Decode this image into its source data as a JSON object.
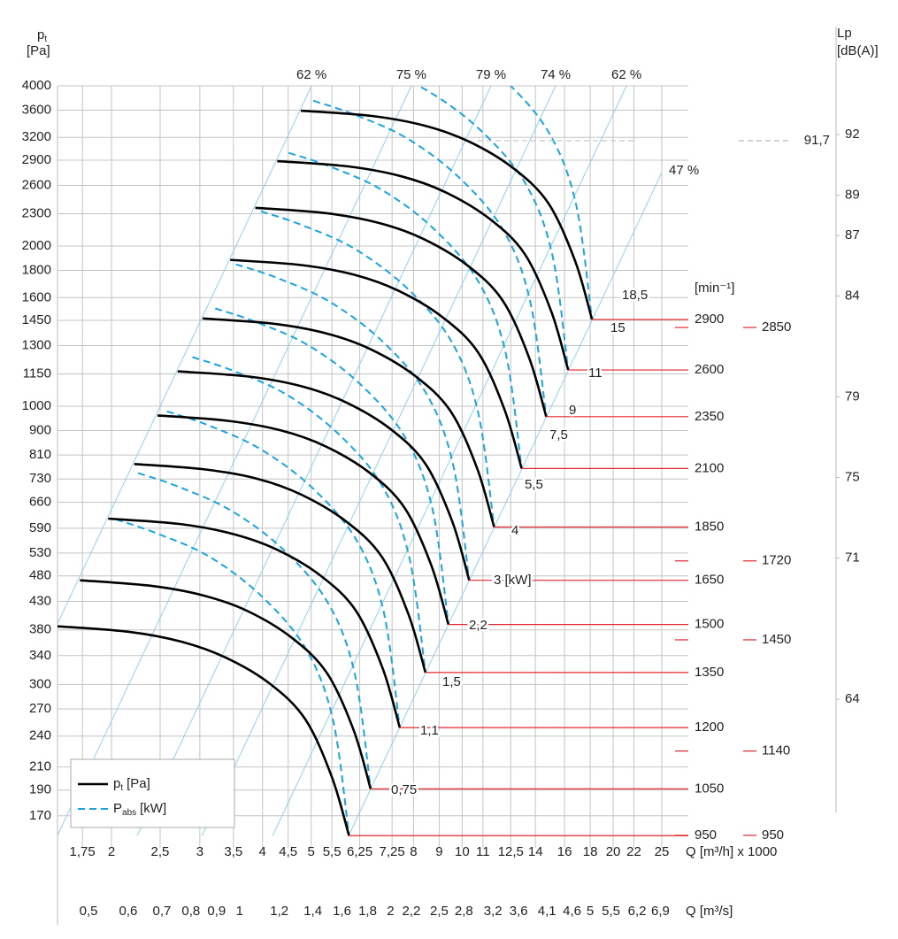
{
  "chart_data": {
    "type": "line",
    "y_label": {
      "symbol": "p",
      "sub": "t",
      "unit": "[Pa]"
    },
    "y2_label": "Lp",
    "y2_unit": "[dB(A)]",
    "x_label": "Q [m³/h] x 1000",
    "x2_label": "Q [m³/s]",
    "rpm_unit": "[min⁻¹]",
    "xlog": true,
    "ylog": true,
    "x2log": true,
    "y2log": false,
    "grid": true,
    "xlim": [
      1.561,
      28.24
    ],
    "x2lim": [
      0.4336,
      7.844
    ],
    "ylim": [
      148,
      4000
    ],
    "y2lim": [
      56.63,
      94.42
    ],
    "xticks": [
      {
        "value": 1.75,
        "label": "1,75"
      },
      2,
      {
        "value": 2.5,
        "label": "2,5"
      },
      3,
      {
        "value": 3.5,
        "label": "3,5"
      },
      4,
      {
        "value": 4.5,
        "label": "4,5"
      },
      5,
      {
        "value": 5.5,
        "label": "5,5"
      },
      {
        "value": 6.25,
        "label": "6,25"
      },
      {
        "value": 7.25,
        "label": "7,25"
      },
      8,
      9,
      10,
      11,
      {
        "value": 12.5,
        "label": "12,5"
      },
      14,
      16,
      18,
      20,
      22,
      25
    ],
    "x2ticks": [
      {
        "value": 0.5,
        "label": "0,5"
      },
      {
        "value": 0.6,
        "label": "0,6"
      },
      {
        "value": 0.7,
        "label": "0,7"
      },
      {
        "value": 0.8,
        "label": "0,8"
      },
      {
        "value": 0.9,
        "label": "0,9"
      },
      1,
      {
        "value": 1.2,
        "label": "1,2"
      },
      {
        "value": 1.4,
        "label": "1,4"
      },
      {
        "value": 1.6,
        "label": "1,6"
      },
      {
        "value": 1.8,
        "label": "1,8"
      },
      2,
      {
        "value": 2.2,
        "label": "2,2"
      },
      {
        "value": 2.5,
        "label": "2,5"
      },
      {
        "value": 2.8,
        "label": "2,8"
      },
      {
        "value": 3.2,
        "label": "3,2"
      },
      {
        "value": 3.6,
        "label": "3,6"
      },
      {
        "value": 4.1,
        "label": "4,1"
      },
      {
        "value": 4.6,
        "label": "4,6"
      },
      5,
      {
        "value": 5.5,
        "label": "5,5"
      },
      {
        "value": 6.2,
        "label": "6,2"
      },
      {
        "value": 6.9,
        "label": "6,9"
      }
    ],
    "yticks": [
      170,
      190,
      210,
      240,
      270,
      300,
      340,
      380,
      430,
      480,
      530,
      590,
      660,
      730,
      810,
      900,
      1000,
      1150,
      1300,
      1450,
      1600,
      1800,
      2000,
      2300,
      2600,
      2900,
      3200,
      3600,
      4000
    ],
    "y2ticks": [
      92,
      89,
      87,
      84,
      79,
      75,
      71,
      64
    ],
    "pressure_color": "#000000",
    "power_color": "#1ca4de",
    "efficiency_color": "#86cdf0",
    "rpm_color": "#e3262d",
    "pressure_curves": [
      {
        "rpm": 2900,
        "x": [
          4.77,
          6.6,
          8.42,
          10.32,
          12.64,
          14.87,
          16.8,
          18.15
        ],
        "values": [
          3593,
          3512,
          3367,
          3143,
          2802,
          2404,
          1874,
          1456
        ]
      },
      {
        "rpm": 2600,
        "x": [
          4.28,
          5.92,
          7.55,
          9.25,
          11.33,
          13.33,
          15.06,
          16.27
        ],
        "values": [
          2888,
          2823,
          2706,
          2526,
          2252,
          1932,
          1506,
          1170
        ]
      },
      {
        "rpm": 2350,
        "x": [
          3.87,
          5.35,
          6.82,
          8.36,
          10.24,
          12.05,
          13.61,
          14.71
        ],
        "values": [
          2360,
          2306,
          2211,
          2064,
          1840,
          1579,
          1231,
          956
        ]
      },
      {
        "rpm": 2100,
        "x": [
          3.45,
          4.78,
          6.1,
          7.47,
          9.15,
          10.77,
          12.16,
          13.14
        ],
        "values": [
          1884,
          1842,
          1766,
          1648,
          1469,
          1261,
          983,
          764
        ]
      },
      {
        "rpm": 1850,
        "x": [
          3.04,
          4.21,
          5.37,
          6.58,
          8.06,
          9.49,
          10.72,
          11.58
        ],
        "values": [
          1462,
          1429,
          1370,
          1279,
          1140,
          978,
          763,
          593
        ]
      },
      {
        "rpm": 1650,
        "x": [
          2.71,
          3.76,
          4.79,
          5.87,
          7.19,
          8.46,
          9.56,
          10.33
        ],
        "values": [
          1163,
          1137,
          1090,
          1017,
          907,
          778,
          607,
          471
        ]
      },
      {
        "rpm": 1500,
        "x": [
          2.47,
          3.41,
          4.35,
          5.34,
          6.54,
          7.69,
          8.69,
          9.39
        ],
        "values": [
          961,
          939,
          901,
          841,
          750,
          643,
          501,
          389
        ]
      },
      {
        "rpm": 1350,
        "x": [
          2.22,
          3.07,
          3.92,
          4.8,
          5.88,
          6.92,
          7.82,
          8.45
        ],
        "values": [
          779,
          761,
          730,
          681,
          607,
          521,
          406,
          316
        ]
      },
      {
        "rpm": 1200,
        "x": [
          1.97,
          2.73,
          3.48,
          4.27,
          5.23,
          6.15,
          6.95,
          7.51
        ],
        "values": [
          615,
          601,
          576,
          538,
          480,
          412,
          321,
          249
        ]
      },
      {
        "rpm": 1050,
        "x": [
          1.73,
          2.39,
          3.05,
          3.74,
          4.58,
          5.38,
          6.08,
          6.57
        ],
        "values": [
          471,
          460,
          441,
          412,
          367,
          315,
          246,
          191
        ]
      },
      {
        "rpm": 950,
        "x": [
          1.56,
          2.16,
          2.76,
          3.38,
          4.14,
          4.87,
          5.5,
          5.95
        ],
        "values": [
          386,
          377,
          361,
          337,
          301,
          258,
          201,
          156
        ]
      }
    ],
    "power_curves": [
      {
        "x": [
          6.23,
          7.48,
          9.55,
          12.18,
          14.93,
          16.87,
          18.15
        ],
        "values": [
          5710,
          5391,
          4862,
          4093,
          3253,
          2394,
          1456
        ]
      },
      {
        "x": [
          5.59,
          6.71,
          8.56,
          10.92,
          13.39,
          15.13,
          16.27
        ],
        "values": [
          4590,
          4333,
          3908,
          3290,
          2615,
          1924,
          1170
        ]
      },
      {
        "x": [
          5.05,
          6.06,
          7.74,
          9.87,
          12.1,
          13.67,
          14.71
        ],
        "values": [
          3750,
          3540,
          3193,
          2688,
          2136,
          1572,
          956
        ]
      },
      {
        "x": [
          4.51,
          5.42,
          6.92,
          8.82,
          10.81,
          12.22,
          13.14
        ],
        "values": [
          2994,
          2827,
          2550,
          2146,
          1706,
          1255,
          764
        ]
      },
      {
        "x": [
          3.97,
          4.77,
          6.09,
          7.77,
          9.52,
          10.76,
          11.58
        ],
        "values": [
          2324,
          2194,
          1979,
          1666,
          1324,
          974,
          593
        ]
      },
      {
        "x": [
          3.54,
          4.26,
          5.43,
          6.93,
          8.5,
          9.6,
          10.33
        ],
        "values": [
          1848,
          1745,
          1574,
          1325,
          1053,
          775,
          471
        ]
      },
      {
        "x": [
          3.22,
          3.87,
          4.94,
          6.3,
          7.72,
          8.73,
          9.39
        ],
        "values": [
          1527,
          1442,
          1301,
          1095,
          870,
          640,
          389
        ]
      },
      {
        "x": [
          2.9,
          3.48,
          4.45,
          5.67,
          6.95,
          7.85,
          8.45
        ],
        "values": [
          1237,
          1168,
          1054,
          887,
          705,
          519,
          316
        ]
      },
      {
        "x": [
          2.58,
          3.1,
          3.95,
          5.04,
          6.18,
          6.98,
          7.51
        ],
        "values": [
          978,
          923,
          832,
          701,
          557,
          410,
          249
        ]
      },
      {
        "x": [
          2.26,
          2.71,
          3.46,
          4.41,
          5.41,
          6.11,
          6.57
        ],
        "values": [
          749,
          707,
          637,
          537,
          426,
          314,
          191
        ]
      },
      {
        "x": [
          2.04,
          2.45,
          3.13,
          3.99,
          4.89,
          5.53,
          5.95
        ],
        "values": [
          613,
          578,
          522,
          439,
          349,
          257,
          156
        ]
      }
    ],
    "efficiency_lines": [
      {
        "name": "62 %",
        "x": [
          1.56,
          5.01
        ],
        "values": [
          390,
          4000
        ]
      },
      {
        "name": "75 %",
        "x": [
          1.56,
          7.92
        ],
        "values": [
          156,
          4000
        ]
      },
      {
        "name": "79 %",
        "x": [
          2.25,
          11.42
        ],
        "values": [
          156,
          4000
        ]
      },
      {
        "name": "74 %",
        "x": [
          3.03,
          15.36
        ],
        "values": [
          156,
          4000
        ]
      },
      {
        "name": "62 %",
        "x": [
          4.19,
          21.26
        ],
        "values": [
          156,
          4000
        ]
      },
      {
        "name": "47 %",
        "x": [
          5.94,
          25
        ],
        "values": [
          156,
          2748
        ]
      }
    ],
    "motor_power_labels": [
      "18,5",
      "15",
      "11",
      "9",
      "7,5",
      "5,5",
      "4",
      "3 [kW]",
      "2,2",
      "1,5",
      "1,1",
      "0,75"
    ],
    "extra_speeds": [
      2850,
      1720,
      1450,
      1140,
      950
    ],
    "sound_level": {
      "value": 91.7,
      "label": "91,7"
    },
    "legend": [
      {
        "symbol": "p",
        "sub": "t",
        "unit": "[Pa]"
      },
      {
        "symbol": "P",
        "sub": "abs",
        "unit": "[kW]"
      }
    ],
    "legend_position": "bottom-left"
  }
}
